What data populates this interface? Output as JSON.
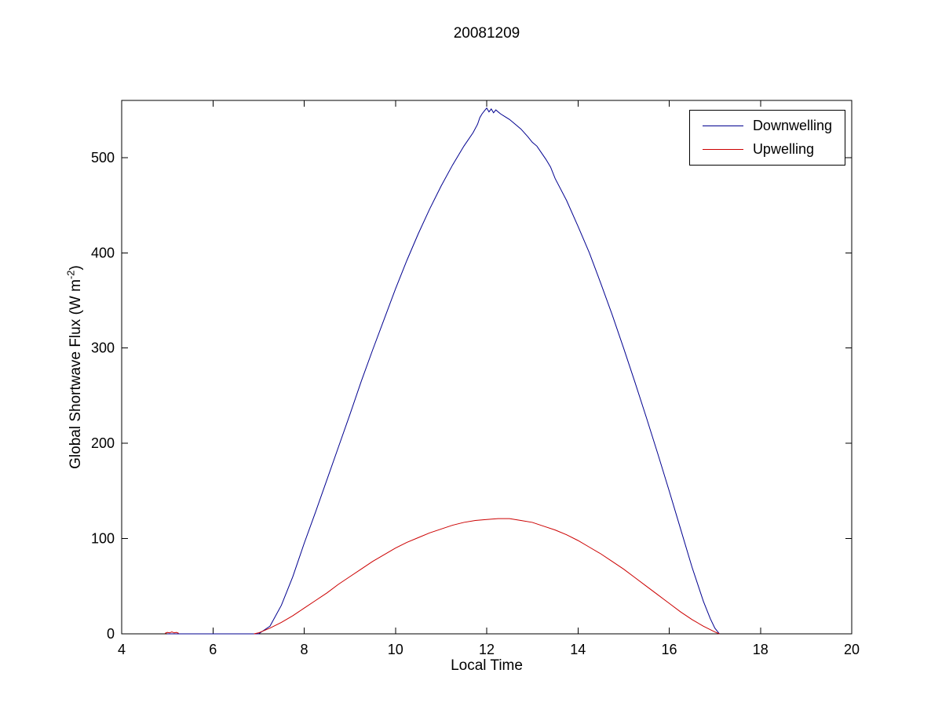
{
  "figure": {
    "title": "20081209"
  },
  "chart_data": {
    "type": "line",
    "title": "20081209",
    "xlabel": "Local Time",
    "ylabel": "Global Shortwave Flux (W m^-2)",
    "ylabel_parts": {
      "pre": "Global Shortwave Flux (W m",
      "sup": "-2",
      "post": ")"
    },
    "xlim": [
      4,
      20
    ],
    "ylim": [
      0,
      560
    ],
    "xticks": [
      4,
      6,
      8,
      10,
      12,
      14,
      16,
      18,
      20
    ],
    "yticks": [
      0,
      100,
      200,
      300,
      400,
      500
    ],
    "grid": false,
    "legend": {
      "position": "top-right",
      "entries": [
        "Downwelling",
        "Upwelling"
      ]
    },
    "series": [
      {
        "name": "Downwelling",
        "color": "#00008F",
        "points": [
          [
            5.0,
            0
          ],
          [
            6.0,
            0
          ],
          [
            6.5,
            0
          ],
          [
            6.9,
            0
          ],
          [
            7.0,
            0
          ],
          [
            7.25,
            8
          ],
          [
            7.5,
            30
          ],
          [
            7.75,
            60
          ],
          [
            8.0,
            95
          ],
          [
            8.25,
            128
          ],
          [
            8.5,
            162
          ],
          [
            8.75,
            196
          ],
          [
            9.0,
            230
          ],
          [
            9.25,
            265
          ],
          [
            9.5,
            298
          ],
          [
            9.75,
            330
          ],
          [
            10.0,
            362
          ],
          [
            10.25,
            392
          ],
          [
            10.5,
            420
          ],
          [
            10.75,
            446
          ],
          [
            11.0,
            470
          ],
          [
            11.25,
            492
          ],
          [
            11.5,
            512
          ],
          [
            11.7,
            526
          ],
          [
            11.8,
            535
          ],
          [
            11.85,
            542
          ],
          [
            11.9,
            546
          ],
          [
            11.95,
            549
          ],
          [
            12.0,
            552
          ],
          [
            12.05,
            548
          ],
          [
            12.1,
            551
          ],
          [
            12.15,
            547
          ],
          [
            12.2,
            550
          ],
          [
            12.3,
            546
          ],
          [
            12.4,
            543
          ],
          [
            12.5,
            540
          ],
          [
            12.6,
            536
          ],
          [
            12.75,
            530
          ],
          [
            12.9,
            522
          ],
          [
            13.0,
            516
          ],
          [
            13.1,
            512
          ],
          [
            13.2,
            505
          ],
          [
            13.3,
            498
          ],
          [
            13.4,
            490
          ],
          [
            13.5,
            478
          ],
          [
            13.75,
            455
          ],
          [
            14.0,
            428
          ],
          [
            14.25,
            400
          ],
          [
            14.5,
            368
          ],
          [
            14.75,
            335
          ],
          [
            15.0,
            300
          ],
          [
            15.25,
            264
          ],
          [
            15.5,
            227
          ],
          [
            15.75,
            189
          ],
          [
            16.0,
            150
          ],
          [
            16.25,
            110
          ],
          [
            16.5,
            70
          ],
          [
            16.75,
            34
          ],
          [
            16.9,
            16
          ],
          [
            17.0,
            6
          ],
          [
            17.1,
            0
          ]
        ]
      },
      {
        "name": "Upwelling",
        "color": "#CC0000",
        "points": [
          [
            4.95,
            0.5
          ],
          [
            5.0,
            1.5
          ],
          [
            5.05,
            1
          ],
          [
            5.1,
            2
          ],
          [
            5.15,
            1
          ],
          [
            5.2,
            1.5
          ],
          [
            5.25,
            0.5
          ],
          null,
          [
            6.9,
            0
          ],
          [
            7.0,
            1
          ],
          [
            7.25,
            6
          ],
          [
            7.5,
            12
          ],
          [
            7.75,
            19
          ],
          [
            8.0,
            27
          ],
          [
            8.25,
            35
          ],
          [
            8.5,
            43
          ],
          [
            8.75,
            52
          ],
          [
            9.0,
            60
          ],
          [
            9.25,
            68
          ],
          [
            9.5,
            76
          ],
          [
            9.75,
            83
          ],
          [
            10.0,
            90
          ],
          [
            10.25,
            96
          ],
          [
            10.5,
            101
          ],
          [
            10.75,
            106
          ],
          [
            11.0,
            110
          ],
          [
            11.25,
            114
          ],
          [
            11.5,
            117
          ],
          [
            11.75,
            119
          ],
          [
            12.0,
            120
          ],
          [
            12.25,
            121
          ],
          [
            12.5,
            121
          ],
          [
            12.75,
            119
          ],
          [
            13.0,
            117
          ],
          [
            13.25,
            113
          ],
          [
            13.5,
            109
          ],
          [
            13.75,
            104
          ],
          [
            14.0,
            98
          ],
          [
            14.25,
            91
          ],
          [
            14.5,
            84
          ],
          [
            14.75,
            76
          ],
          [
            15.0,
            68
          ],
          [
            15.25,
            59
          ],
          [
            15.5,
            50
          ],
          [
            15.75,
            41
          ],
          [
            16.0,
            32
          ],
          [
            16.25,
            23
          ],
          [
            16.5,
            15
          ],
          [
            16.75,
            8
          ],
          [
            17.0,
            2
          ],
          [
            17.1,
            0
          ]
        ]
      }
    ]
  }
}
